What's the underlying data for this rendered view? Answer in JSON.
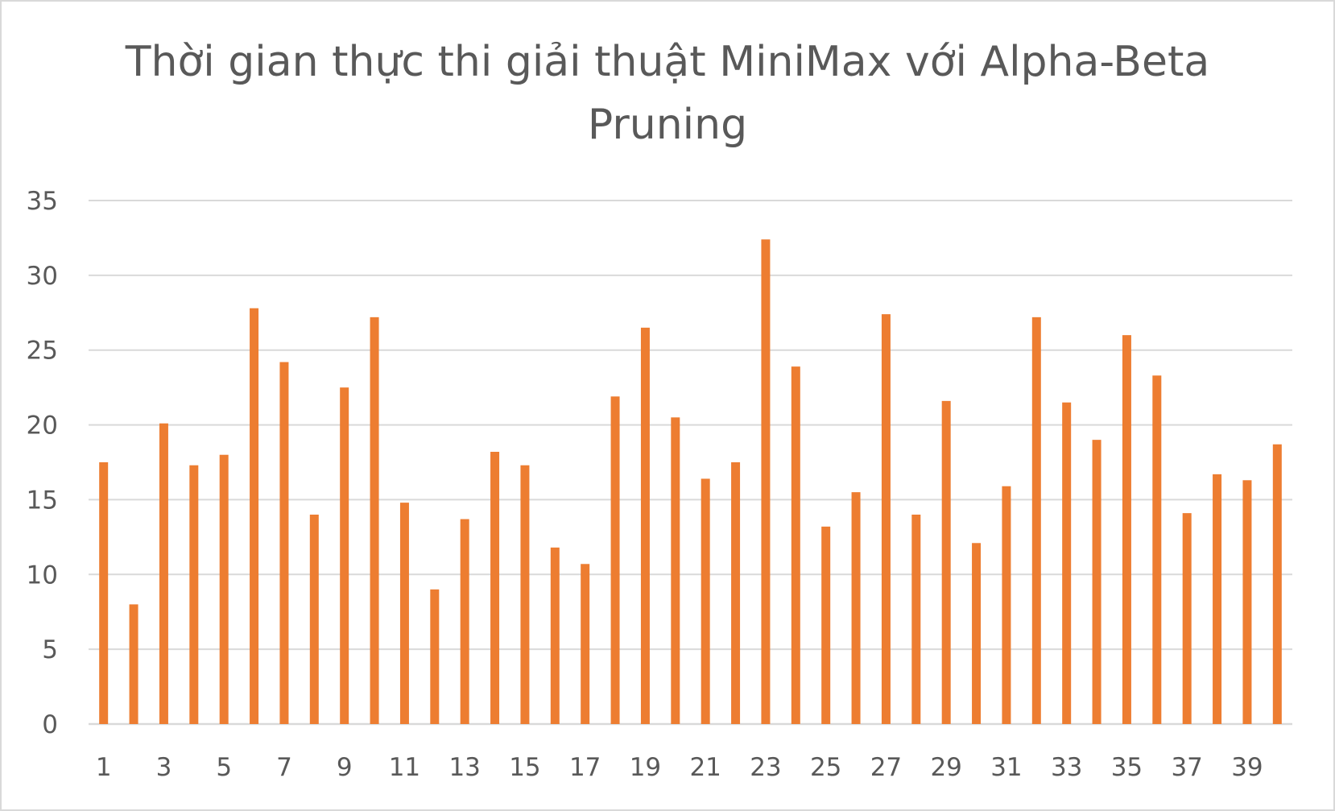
{
  "chart_data": {
    "type": "bar",
    "title_lines": [
      "Thời gian thực thi giải thuật MiniMax với Alpha-Beta",
      "Pruning"
    ],
    "xlabel": "",
    "ylabel": "",
    "categories": [
      1,
      2,
      3,
      4,
      5,
      6,
      7,
      8,
      9,
      10,
      11,
      12,
      13,
      14,
      15,
      16,
      17,
      18,
      19,
      20,
      21,
      22,
      23,
      24,
      25,
      26,
      27,
      28,
      29,
      30,
      31,
      32,
      33,
      34,
      35,
      36,
      37,
      38,
      39,
      40
    ],
    "x_tick_labels": [
      "1",
      "3",
      "5",
      "7",
      "9",
      "11",
      "13",
      "15",
      "17",
      "19",
      "21",
      "23",
      "25",
      "27",
      "29",
      "31",
      "33",
      "35",
      "37",
      "39"
    ],
    "values": [
      17.5,
      8.0,
      20.1,
      17.3,
      18.0,
      27.8,
      24.2,
      14.0,
      22.5,
      27.2,
      14.8,
      9.0,
      13.7,
      18.2,
      17.3,
      11.8,
      10.7,
      21.9,
      26.5,
      20.5,
      16.4,
      17.5,
      32.4,
      23.9,
      13.2,
      15.5,
      27.4,
      14.0,
      21.6,
      12.1,
      15.9,
      27.2,
      21.5,
      19.0,
      26.0,
      23.3,
      14.1,
      16.7,
      16.3,
      18.7
    ],
    "ylim": [
      0,
      35
    ],
    "y_ticks": [
      0,
      5,
      10,
      15,
      20,
      25,
      30,
      35
    ],
    "grid": true,
    "legend": "none",
    "bar_color": "#ED7D31",
    "grid_color": "#d9d9d9",
    "text_color": "#595959"
  }
}
